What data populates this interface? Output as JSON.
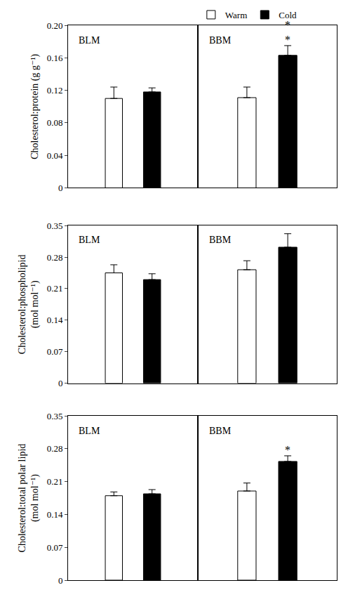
{
  "chart_data": [
    {
      "type": "bar",
      "y_label": "Cholesterol:protein (g g⁻¹)",
      "categories": [
        "BLM",
        "BBM"
      ],
      "series": [
        {
          "name": "Warm",
          "color": "#ffffff",
          "values": [
            0.11,
            0.111
          ],
          "errors": [
            0.014,
            0.013
          ]
        },
        {
          "name": "Cold",
          "color": "#000000",
          "values": [
            0.118,
            0.163
          ],
          "errors": [
            0.005,
            0.012
          ]
        }
      ],
      "annotations": [
        {
          "text": "**",
          "category": "BBM",
          "series": "Cold"
        }
      ],
      "ylim": [
        0,
        0.2
      ],
      "yticks": [
        0,
        0.04,
        0.08,
        0.12,
        0.16,
        {
          "value": 0.2,
          "label": "0.20"
        }
      ],
      "grid": false,
      "legend": "top",
      "tick_labels": "y"
    },
    {
      "type": "bar",
      "y_label": "Cholesterol:phospholipid\n(mol mol⁻¹)",
      "categories": [
        "BLM",
        "BBM"
      ],
      "series": [
        {
          "name": "Warm",
          "color": "#ffffff",
          "values": [
            0.245,
            0.252
          ],
          "errors": [
            0.018,
            0.02
          ]
        },
        {
          "name": "Cold",
          "color": "#000000",
          "values": [
            0.23,
            0.302
          ],
          "errors": [
            0.013,
            0.03
          ]
        }
      ],
      "ylim": [
        0,
        0.35
      ],
      "yticks": [
        0,
        0.07,
        0.14,
        0.21,
        0.28,
        0.35
      ],
      "grid": false,
      "tick_labels": "y"
    },
    {
      "type": "bar",
      "y_label": "Cholesterol:total polar lipid\n(mol mol⁻¹)",
      "categories": [
        "BLM",
        "BBM"
      ],
      "series": [
        {
          "name": "Warm",
          "color": "#ffffff",
          "values": [
            0.18,
            0.19
          ],
          "errors": [
            0.008,
            0.017
          ]
        },
        {
          "name": "Cold",
          "color": "#000000",
          "values": [
            0.184,
            0.253
          ],
          "errors": [
            0.009,
            0.012
          ]
        }
      ],
      "annotations": [
        {
          "text": "*",
          "category": "BBM",
          "series": "Cold"
        }
      ],
      "ylim": [
        0,
        0.35
      ],
      "yticks": [
        0,
        0.07,
        0.14,
        0.21,
        0.28,
        0.35
      ],
      "grid": false,
      "tick_labels": "y"
    }
  ]
}
